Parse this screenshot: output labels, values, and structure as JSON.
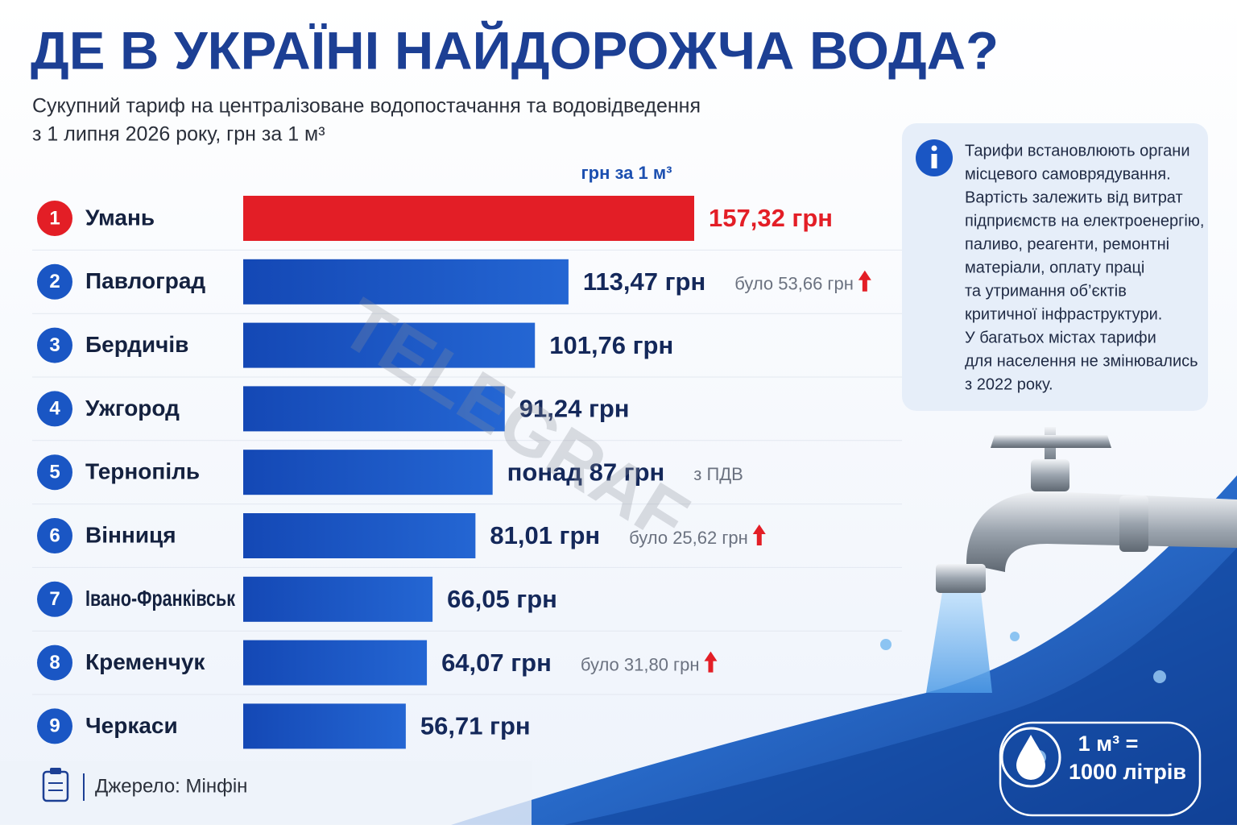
{
  "chart_data": {
    "type": "bar",
    "orientation": "horizontal",
    "title": "ДЕ В УКРАЇНІ НАЙДОРОЖЧА ВОДА?",
    "subtitle": [
      "Сукупний тариф на централізоване водопостачання та водовідведення",
      "з 1 липня 2026 року, грн за 1 м³"
    ],
    "unit_label": "грн за 1 м³",
    "ranks": [
      1,
      2,
      3,
      4,
      5,
      6,
      7,
      8,
      9
    ],
    "categories": [
      "Умань",
      "Павлоград",
      "Бердичів",
      "Ужгород",
      "Тернопіль",
      "Вінниця",
      "Івано-Франківськ",
      "Кременчук",
      "Черкаси"
    ],
    "values": [
      157.32,
      113.47,
      101.76,
      91.24,
      87,
      81.01,
      66.05,
      64.07,
      56.71
    ],
    "value_labels": [
      "157,32 грн",
      "113,47 грн",
      "101,76 грн",
      "91,24 грн",
      "понад 87 грн",
      "81,01 грн",
      "66,05 грн",
      "64,07 грн",
      "56,71 грн"
    ],
    "notes": [
      null,
      "було 53,66 грн",
      null,
      null,
      "з ПДВ",
      "було 25,62 грн",
      null,
      "було 31,80 грн",
      null
    ],
    "up_arrow": [
      false,
      true,
      false,
      false,
      false,
      true,
      false,
      true,
      false
    ],
    "color": "#1a56c4",
    "highlight_color": "#e31e26",
    "highlight_index": 0,
    "info": [
      "Тарифи встановлюють органи",
      "місцевого самоврядування.",
      "Вартість залежить від витрат",
      "підприємств на електроенергію,",
      "паливо, реагенти, ремонтні",
      "матеріали, оплату праці",
      "та утримання об’єктів",
      "критичної інфраструктури.",
      "У багатьох містах тарифи",
      "для населення не змінювались",
      "з 2022 року."
    ],
    "source": "Джерело: Мінфін",
    "badge": [
      "1 м³ =",
      "1000 літрів"
    ],
    "watermark": "TELEGRAF"
  }
}
